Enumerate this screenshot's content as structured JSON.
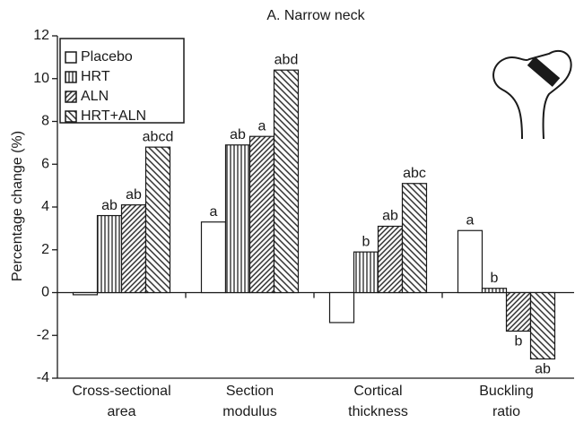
{
  "chart_data": {
    "type": "bar",
    "title": "A. Narrow neck",
    "y_label": "Percentage change (%)",
    "categories": [
      [
        "Cross-sectional",
        "area"
      ],
      [
        "Section",
        "modulus"
      ],
      [
        "Cortical",
        "thickness"
      ],
      [
        "Buckling",
        "ratio"
      ]
    ],
    "series": [
      {
        "name": "Placebo",
        "pattern": "none",
        "values": [
          -0.1,
          3.3,
          -1.4,
          2.9
        ],
        "annotations": [
          null,
          "a",
          null,
          "a"
        ]
      },
      {
        "name": "HRT",
        "pattern": "vertical",
        "values": [
          3.6,
          6.9,
          1.9,
          0.2
        ],
        "annotations": [
          "ab",
          "ab",
          "b",
          "b"
        ]
      },
      {
        "name": "ALN",
        "pattern": "dense-diagonal",
        "values": [
          4.1,
          7.3,
          3.1,
          -1.8
        ],
        "annotations": [
          "ab",
          "a",
          "ab",
          "b"
        ]
      },
      {
        "name": "HRT+ALN",
        "pattern": "diagonal",
        "values": [
          6.8,
          10.4,
          5.1,
          -3.1
        ],
        "annotations": [
          "abcd",
          "abd",
          "abc",
          "ab"
        ]
      }
    ],
    "ylim": [
      -4,
      12
    ],
    "yticks": [
      -4,
      -2,
      0,
      2,
      4,
      6,
      8,
      10,
      12
    ],
    "legend": "upper left"
  }
}
